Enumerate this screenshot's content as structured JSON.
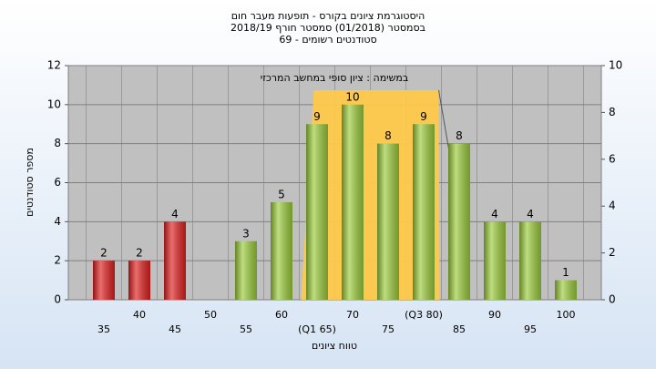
{
  "chart_data": {
    "type": "bar",
    "title": "היסטוגרמת ציונים בקורס - תופעות מעבר חום",
    "subtitle": "בסמסטר (01/2018) סמסטר חורף 2018/19",
    "subtitle2": "סטודנטים רשומים - 69",
    "annotation": "במשימה : ציון סופי במחשב המרכזי",
    "x_label": "טווח ציונים",
    "y_label": "מספר סטודנטים",
    "categories": [
      "35",
      "40",
      "45",
      "50",
      "55",
      "60",
      "(Q1 65)",
      "70",
      "75",
      "(Q3 80)",
      "85",
      "90",
      "95",
      "100"
    ],
    "values": [
      2,
      2,
      4,
      null,
      3,
      5,
      9,
      10,
      8,
      9,
      8,
      4,
      4,
      1
    ],
    "colors": [
      "#e02020",
      "#e02020",
      "#e02020",
      null,
      "#9ccc3c",
      "#9ccc3c",
      "#9ccc3c",
      "#9ccc3c",
      "#9ccc3c",
      "#9ccc3c",
      "#9ccc3c",
      "#9ccc3c",
      "#9ccc3c",
      "#9ccc3c"
    ],
    "ylim": [
      0,
      12
    ],
    "yticks": [
      0,
      2,
      4,
      6,
      8,
      10,
      12
    ],
    "y2lim": [
      0,
      10
    ],
    "y2ticks": [
      0,
      2,
      4,
      6,
      8,
      10
    ],
    "grid": true
  }
}
